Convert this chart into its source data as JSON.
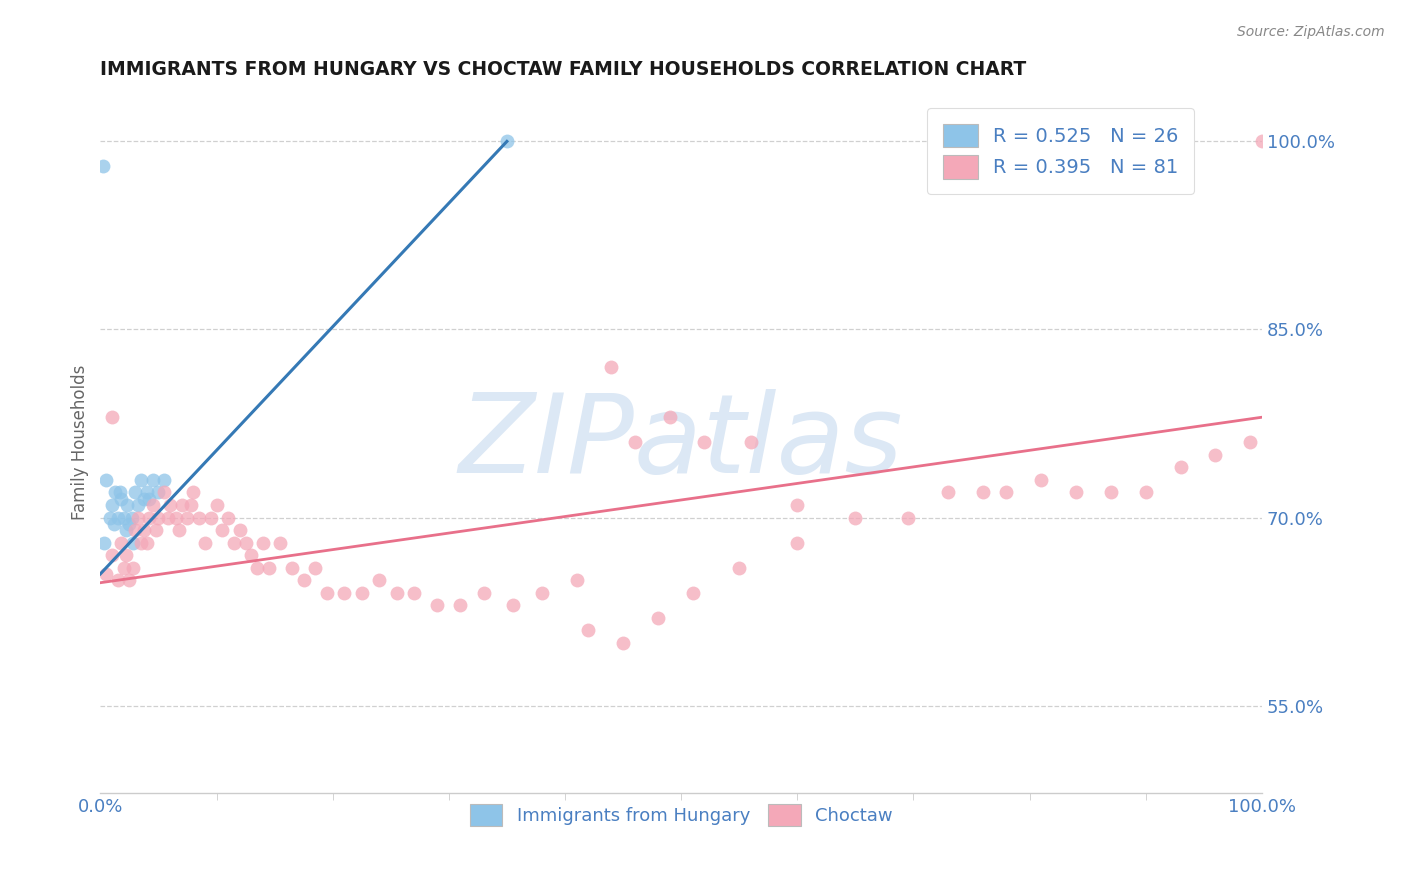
{
  "title": "IMMIGRANTS FROM HUNGARY VS CHOCTAW FAMILY HOUSEHOLDS CORRELATION CHART",
  "source_text": "Source: ZipAtlas.com",
  "ylabel": "Family Households",
  "watermark": "ZIPatlas",
  "xlim": [
    0.0,
    1.0
  ],
  "ylim": [
    0.48,
    1.04
  ],
  "x_tick_labels": [
    "0.0%",
    "100.0%"
  ],
  "y_tick_labels": [
    "55.0%",
    "70.0%",
    "85.0%",
    "100.0%"
  ],
  "y_tick_values": [
    0.55,
    0.7,
    0.85,
    1.0
  ],
  "blue_color": "#8ec4e8",
  "pink_color": "#f4a8b8",
  "blue_line_color": "#3579b5",
  "pink_line_color": "#e8708a",
  "axis_label_color": "#4a7fc1",
  "watermark_color": "#dce8f5",
  "blue_scatter_x": [
    0.003,
    0.005,
    0.008,
    0.01,
    0.012,
    0.013,
    0.015,
    0.017,
    0.018,
    0.02,
    0.022,
    0.023,
    0.025,
    0.027,
    0.028,
    0.03,
    0.032,
    0.035,
    0.038,
    0.04,
    0.042,
    0.045,
    0.05,
    0.055,
    0.35,
    0.002
  ],
  "blue_scatter_y": [
    0.68,
    0.73,
    0.7,
    0.71,
    0.695,
    0.72,
    0.7,
    0.72,
    0.715,
    0.7,
    0.69,
    0.71,
    0.695,
    0.7,
    0.68,
    0.72,
    0.71,
    0.73,
    0.715,
    0.72,
    0.715,
    0.73,
    0.72,
    0.73,
    1.0,
    0.98
  ],
  "pink_scatter_x": [
    0.005,
    0.01,
    0.015,
    0.018,
    0.02,
    0.022,
    0.025,
    0.028,
    0.03,
    0.032,
    0.035,
    0.038,
    0.04,
    0.042,
    0.045,
    0.048,
    0.05,
    0.055,
    0.058,
    0.06,
    0.065,
    0.068,
    0.07,
    0.075,
    0.078,
    0.08,
    0.085,
    0.09,
    0.095,
    0.1,
    0.105,
    0.11,
    0.115,
    0.12,
    0.125,
    0.13,
    0.135,
    0.14,
    0.145,
    0.155,
    0.165,
    0.175,
    0.185,
    0.195,
    0.21,
    0.225,
    0.24,
    0.255,
    0.27,
    0.29,
    0.31,
    0.33,
    0.355,
    0.38,
    0.42,
    0.45,
    0.48,
    0.51,
    0.55,
    0.6,
    0.65,
    0.695,
    0.73,
    0.76,
    0.78,
    0.81,
    0.84,
    0.87,
    0.9,
    0.93,
    0.96,
    0.99,
    0.44,
    0.46,
    0.49,
    0.52,
    0.56,
    0.41,
    0.6,
    1.0,
    0.01
  ],
  "pink_scatter_y": [
    0.655,
    0.67,
    0.65,
    0.68,
    0.66,
    0.67,
    0.65,
    0.66,
    0.69,
    0.7,
    0.68,
    0.69,
    0.68,
    0.7,
    0.71,
    0.69,
    0.7,
    0.72,
    0.7,
    0.71,
    0.7,
    0.69,
    0.71,
    0.7,
    0.71,
    0.72,
    0.7,
    0.68,
    0.7,
    0.71,
    0.69,
    0.7,
    0.68,
    0.69,
    0.68,
    0.67,
    0.66,
    0.68,
    0.66,
    0.68,
    0.66,
    0.65,
    0.66,
    0.64,
    0.64,
    0.64,
    0.65,
    0.64,
    0.64,
    0.63,
    0.63,
    0.64,
    0.63,
    0.64,
    0.61,
    0.6,
    0.62,
    0.64,
    0.66,
    0.68,
    0.7,
    0.7,
    0.72,
    0.72,
    0.72,
    0.73,
    0.72,
    0.72,
    0.72,
    0.74,
    0.75,
    0.76,
    0.82,
    0.76,
    0.78,
    0.76,
    0.76,
    0.65,
    0.71,
    1.0,
    0.78
  ],
  "blue_trend_x": [
    0.0,
    0.35
  ],
  "blue_trend_y": [
    0.655,
    1.0
  ],
  "pink_trend_x": [
    0.0,
    1.0
  ],
  "pink_trend_y": [
    0.648,
    0.78
  ]
}
